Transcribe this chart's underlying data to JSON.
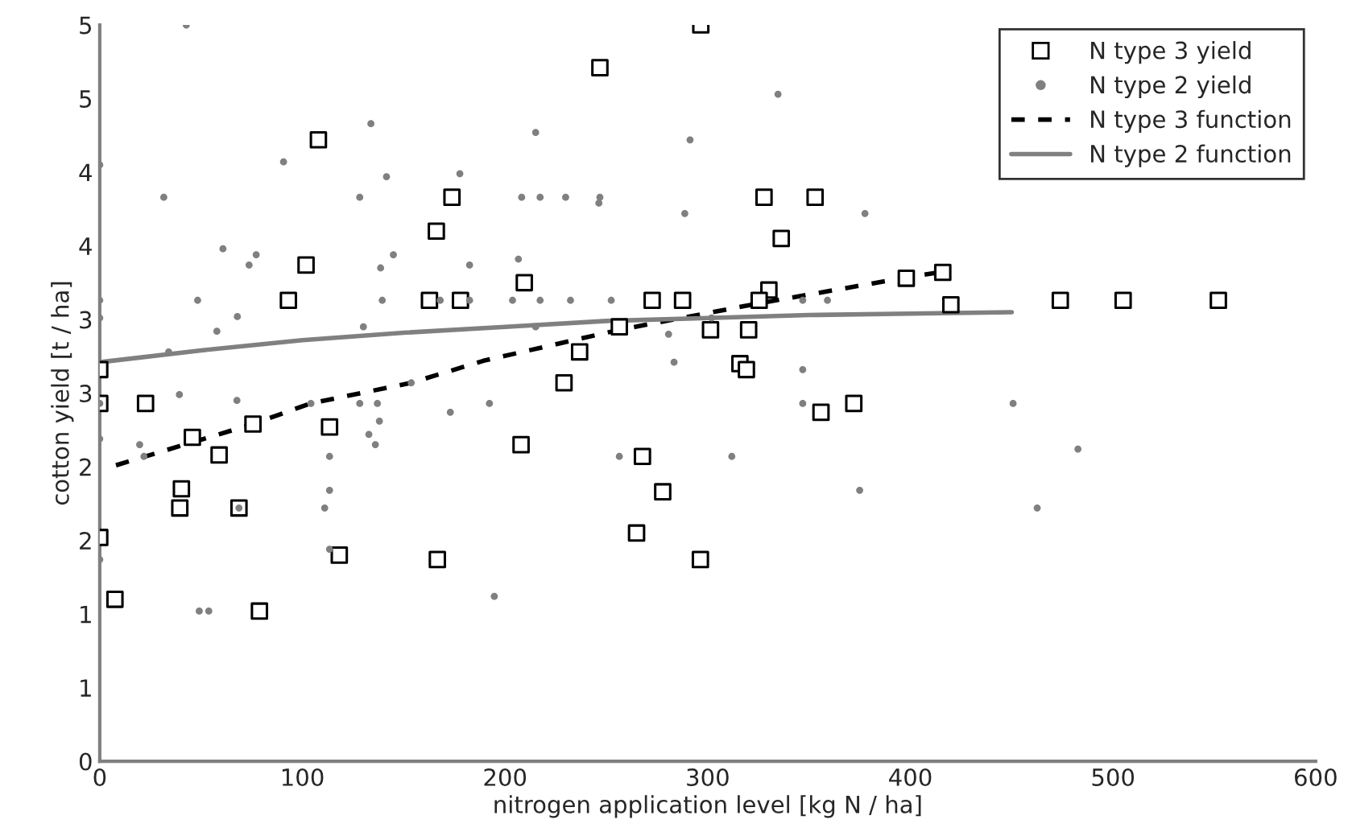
{
  "chart_data": {
    "type": "scatter",
    "xlabel": "nitrogen application level [kg N / ha]",
    "ylabel": "cotton yield [t / ha]",
    "xlim": [
      0,
      600
    ],
    "xticks": [
      0,
      100,
      200,
      300,
      400,
      500,
      600
    ],
    "ylim": [
      0,
      5
    ],
    "yticks": [
      0,
      {
        "value": 0.5,
        "label": "1"
      },
      1,
      {
        "value": 1.5,
        "label": "2"
      },
      2,
      {
        "value": 2.5,
        "label": "3"
      },
      3,
      {
        "value": 3.5,
        "label": "4"
      },
      4,
      {
        "value": 4.5,
        "label": "5"
      },
      5
    ],
    "grid": false,
    "legend": "top right",
    "series": [
      {
        "name": "N type 3 yield",
        "marker": "square",
        "color": "#000000",
        "x": [
          0,
          0,
          0,
          7.5,
          22.6,
          40.3,
          39.5,
          45.7,
          58.9,
          68.7,
          75.6,
          113.4,
          118.2,
          78.8,
          166.6,
          107.9,
          101.8,
          93.1,
          173.8,
          166.1,
          162.7,
          178,
          296.6,
          246.8,
          327.8,
          353,
          336.3,
          209.5,
          272.6,
          287.6,
          330.2,
          325.4,
          256.4,
          236.8,
          301.4,
          320.2,
          315.9,
          319.1,
          229.1,
          207.9,
          267.8,
          277.8,
          264.9,
          296.4,
          355.9,
          372.1,
          398,
          416,
          420,
          474,
          505,
          552
        ],
        "values": [
          2.66,
          2.43,
          1.52,
          1.1,
          2.43,
          1.85,
          1.72,
          2.2,
          2.08,
          1.72,
          2.29,
          2.27,
          1.4,
          1.02,
          1.37,
          4.22,
          3.37,
          3.13,
          3.83,
          3.6,
          3.13,
          3.13,
          5.0,
          4.71,
          3.83,
          3.83,
          3.55,
          3.25,
          3.13,
          3.13,
          3.2,
          3.13,
          2.95,
          2.78,
          2.93,
          2.93,
          2.7,
          2.66,
          2.57,
          2.15,
          2.07,
          1.83,
          1.55,
          1.37,
          2.37,
          2.43,
          3.28,
          3.32,
          3.1,
          3.13,
          3.13,
          3.13
        ]
      },
      {
        "name": "N type 2 yield",
        "marker": "circle",
        "color": "#808080",
        "x": [
          42.7,
          133.8,
          0,
          90.7,
          141.5,
          177.7,
          31.6,
          128.3,
          60.8,
          77.2,
          73.7,
          144.9,
          138.6,
          182.5,
          0,
          0,
          48.3,
          139.4,
          168,
          182.5,
          67.9,
          57.8,
          130.1,
          34,
          39.3,
          334.7,
          215.1,
          291.3,
          208.2,
          217.3,
          229.9,
          246.8,
          246.3,
          288.7,
          377.6,
          206.6,
          203.7,
          217.3,
          232.3,
          252.4,
          346.9,
          359.1,
          215.1,
          280.7,
          301.9,
          283.4,
          346.9,
          67.7,
          104.2,
          128.3,
          137,
          192.3,
          173,
          138,
          132.8,
          136,
          0,
          19.7,
          21.8,
          113.4,
          113.4,
          111,
          68.7,
          113.4,
          0,
          49.1,
          53.8,
          194.7,
          153.7,
          0,
          346.9,
          256.4,
          311.9,
          375,
          450.7,
          482.7,
          462.6
        ],
        "values": [
          5.0,
          4.33,
          4.05,
          4.07,
          3.97,
          3.99,
          3.83,
          3.83,
          3.48,
          3.44,
          3.37,
          3.44,
          3.35,
          3.37,
          3.13,
          3.01,
          3.13,
          3.13,
          3.13,
          3.13,
          3.02,
          2.92,
          2.95,
          2.78,
          2.49,
          4.53,
          4.27,
          4.22,
          3.83,
          3.83,
          3.83,
          3.83,
          3.79,
          3.72,
          3.72,
          3.41,
          3.13,
          3.13,
          3.13,
          3.13,
          3.13,
          3.13,
          2.95,
          2.9,
          3.01,
          2.71,
          2.66,
          2.45,
          2.43,
          2.43,
          2.43,
          2.43,
          2.37,
          2.31,
          2.22,
          2.15,
          2.19,
          2.15,
          2.07,
          2.07,
          1.84,
          1.72,
          1.72,
          1.44,
          1.37,
          1.02,
          1.02,
          1.12,
          2.57,
          2.43,
          2.43,
          2.07,
          2.07,
          1.84,
          2.43,
          2.12,
          1.72
        ]
      },
      {
        "name": "N type 3 function",
        "type": "line",
        "line_style": "dashed",
        "color": "#000000",
        "x": [
          8,
          75.6,
          104,
          153.7,
          189.4,
          256.4,
          325.4,
          396,
          414
        ],
        "values": [
          2.01,
          2.29,
          2.43,
          2.57,
          2.72,
          2.93,
          3.11,
          3.28,
          3.32
        ]
      },
      {
        "name": "N type 2 function",
        "type": "line",
        "line_style": "solid",
        "color": "#808080",
        "x": [
          0,
          50,
          100,
          150,
          200,
          250,
          300,
          350,
          400,
          450
        ],
        "values": [
          2.71,
          2.79,
          2.86,
          2.91,
          2.95,
          2.99,
          3.01,
          3.03,
          3.04,
          3.05
        ]
      }
    ]
  }
}
